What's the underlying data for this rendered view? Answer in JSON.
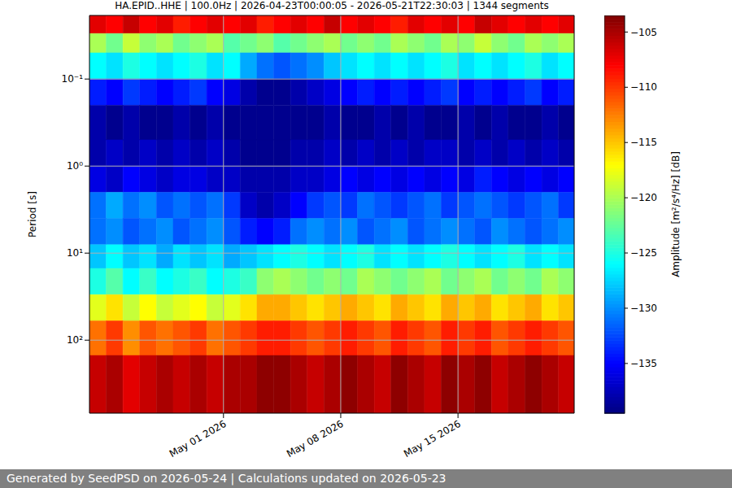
{
  "chart_data": {
    "type": "heatmap",
    "title": "HA.EPID..HHE | 100.0Hz | 2026-04-23T00:00:05 - 2026-05-21T22:30:03 | 1344 segments",
    "y_label": "Period [s]",
    "colorbar_label": "Amplitude [m²/s⁴/Hz] [dB]",
    "footer": "Generated by SeedPSD on 2026-05-24 | Calculations updated on 2026-05-23",
    "log": "y",
    "grid": true,
    "xlim": [
      "2026-04-23T00:00:05",
      "2026-05-21T22:30:03"
    ],
    "xticks": [
      {
        "value": "2026-05-01",
        "label": "May 01 2026"
      },
      {
        "value": "2026-05-08",
        "label": "May 08 2026"
      },
      {
        "value": "2026-05-15",
        "label": "May 15 2026"
      }
    ],
    "ylim": [
      0.0186,
      690
    ],
    "yticks": [
      {
        "value": 0.1,
        "label": "10⁻¹"
      },
      {
        "value": 1,
        "label": "10⁰"
      },
      {
        "value": 10,
        "label": "10¹"
      },
      {
        "value": 100,
        "label": "10²"
      }
    ],
    "colorbar_range": [
      -139.5,
      -103.5
    ],
    "colorbar_ticks": [
      {
        "value": -105,
        "label": "−105"
      },
      {
        "value": -110,
        "label": "−110"
      },
      {
        "value": -115,
        "label": "−115"
      },
      {
        "value": -120,
        "label": "−120"
      },
      {
        "value": -125,
        "label": "−125"
      },
      {
        "value": -130,
        "label": "−130"
      },
      {
        "value": -135,
        "label": "−135"
      }
    ],
    "x_edges": [
      "2026-04-23",
      "2026-04-24",
      "2026-04-25",
      "2026-04-26",
      "2026-04-27",
      "2026-04-28",
      "2026-04-29",
      "2026-04-30",
      "2026-05-01",
      "2026-05-02",
      "2026-05-03",
      "2026-05-04",
      "2026-05-05",
      "2026-05-06",
      "2026-05-07",
      "2026-05-08",
      "2026-05-09",
      "2026-05-10",
      "2026-05-11",
      "2026-05-12",
      "2026-05-13",
      "2026-05-14",
      "2026-05-15",
      "2026-05-16",
      "2026-05-17",
      "2026-05-18",
      "2026-05-19",
      "2026-05-20",
      "2026-05-21",
      "2026-05-21T22:30:03"
    ],
    "y_edges": [
      0.0186,
      0.03,
      0.05,
      0.1,
      0.2,
      0.5,
      1,
      2,
      4,
      8,
      15,
      30,
      60,
      150,
      690
    ],
    "cells": [
      [
        -107,
        -108,
        -106,
        -108,
        -107,
        -109,
        -108,
        -107,
        -108,
        -107,
        -109,
        -108,
        -107,
        -108,
        -106,
        -108,
        -107,
        -108,
        -109,
        -107,
        -108,
        -107,
        -108,
        -106,
        -107,
        -108,
        -107,
        -108,
        -107
      ],
      [
        -120,
        -122,
        -119,
        -121,
        -120,
        -122,
        -121,
        -120,
        -123,
        -122,
        -121,
        -123,
        -122,
        -121,
        -120,
        -122,
        -121,
        -122,
        -120,
        -121,
        -122,
        -120,
        -121,
        -119,
        -121,
        -122,
        -120,
        -121,
        -120
      ],
      [
        -126,
        -127,
        -125,
        -126,
        -127,
        -126,
        -125,
        -127,
        -126,
        -129,
        -131,
        -132,
        -131,
        -130,
        -128,
        -127,
        -126,
        -127,
        -126,
        -127,
        -126,
        -125,
        -127,
        -126,
        -127,
        -126,
        -125,
        -127,
        -126
      ],
      [
        -134,
        -135,
        -133,
        -134,
        -135,
        -134,
        -133,
        -135,
        -136,
        -138,
        -139,
        -139,
        -138,
        -137,
        -136,
        -135,
        -134,
        -135,
        -134,
        -135,
        -134,
        -133,
        -135,
        -134,
        -135,
        -134,
        -133,
        -135,
        -134
      ],
      [
        -138,
        -139,
        -138,
        -139,
        -139,
        -138,
        -139,
        -138,
        -139,
        -139,
        -139,
        -139,
        -139,
        -139,
        -138,
        -139,
        -139,
        -138,
        -139,
        -138,
        -139,
        -139,
        -138,
        -139,
        -138,
        -139,
        -139,
        -138,
        -139
      ],
      [
        -138,
        -137,
        -138,
        -137,
        -138,
        -137,
        -138,
        -137,
        -138,
        -139,
        -139,
        -139,
        -138,
        -138,
        -137,
        -138,
        -137,
        -138,
        -137,
        -138,
        -137,
        -137,
        -138,
        -137,
        -138,
        -137,
        -138,
        -137,
        -138
      ],
      [
        -136,
        -137,
        -135,
        -136,
        -137,
        -136,
        -136,
        -137,
        -137,
        -138,
        -138,
        -138,
        -137,
        -137,
        -136,
        -135,
        -136,
        -135,
        -136,
        -135,
        -136,
        -135,
        -136,
        -134,
        -135,
        -136,
        -135,
        -136,
        -135
      ],
      [
        -131,
        -129,
        -131,
        -130,
        -132,
        -131,
        -132,
        -131,
        -133,
        -137,
        -138,
        -137,
        -135,
        -133,
        -132,
        -133,
        -131,
        -132,
        -133,
        -132,
        -131,
        -133,
        -132,
        -131,
        -132,
        -133,
        -132,
        -131,
        -133
      ],
      [
        -131,
        -130,
        -132,
        -131,
        -130,
        -132,
        -131,
        -130,
        -132,
        -134,
        -135,
        -134,
        -131,
        -130,
        -131,
        -130,
        -132,
        -131,
        -130,
        -132,
        -131,
        -130,
        -131,
        -132,
        -130,
        -131,
        -132,
        -131,
        -130
      ],
      [
        -128,
        -126,
        -128,
        -127,
        -129,
        -127,
        -128,
        -127,
        -129,
        -128,
        -127,
        -126,
        -125,
        -126,
        -127,
        -126,
        -125,
        -127,
        -126,
        -127,
        -126,
        -125,
        -126,
        -127,
        -126,
        -125,
        -127,
        -126,
        -127
      ],
      [
        -125,
        -123,
        -126,
        -124,
        -126,
        -125,
        -124,
        -126,
        -125,
        -124,
        -121,
        -120,
        -121,
        -122,
        -121,
        -122,
        -120,
        -121,
        -122,
        -121,
        -120,
        -122,
        -121,
        -120,
        -122,
        -121,
        -122,
        -120,
        -121
      ],
      [
        -118,
        -116,
        -119,
        -117,
        -119,
        -118,
        -117,
        -119,
        -118,
        -116,
        -114,
        -114,
        -115,
        -116,
        -115,
        -114,
        -115,
        -116,
        -114,
        -115,
        -116,
        -114,
        -115,
        -114,
        -116,
        -115,
        -114,
        -116,
        -115
      ],
      [
        -112,
        -110,
        -113,
        -111,
        -112,
        -111,
        -110,
        -112,
        -111,
        -110,
        -109,
        -109,
        -110,
        -111,
        -110,
        -109,
        -110,
        -111,
        -109,
        -110,
        -111,
        -109,
        -110,
        -109,
        -111,
        -110,
        -109,
        -110,
        -111
      ],
      [
        -106,
        -105,
        -107,
        -106,
        -105,
        -106,
        -105,
        -106,
        -105,
        -105,
        -104,
        -104,
        -105,
        -106,
        -105,
        -104,
        -105,
        -106,
        -104,
        -105,
        -106,
        -104,
        -105,
        -104,
        -106,
        -105,
        -104,
        -105,
        -106
      ]
    ]
  }
}
